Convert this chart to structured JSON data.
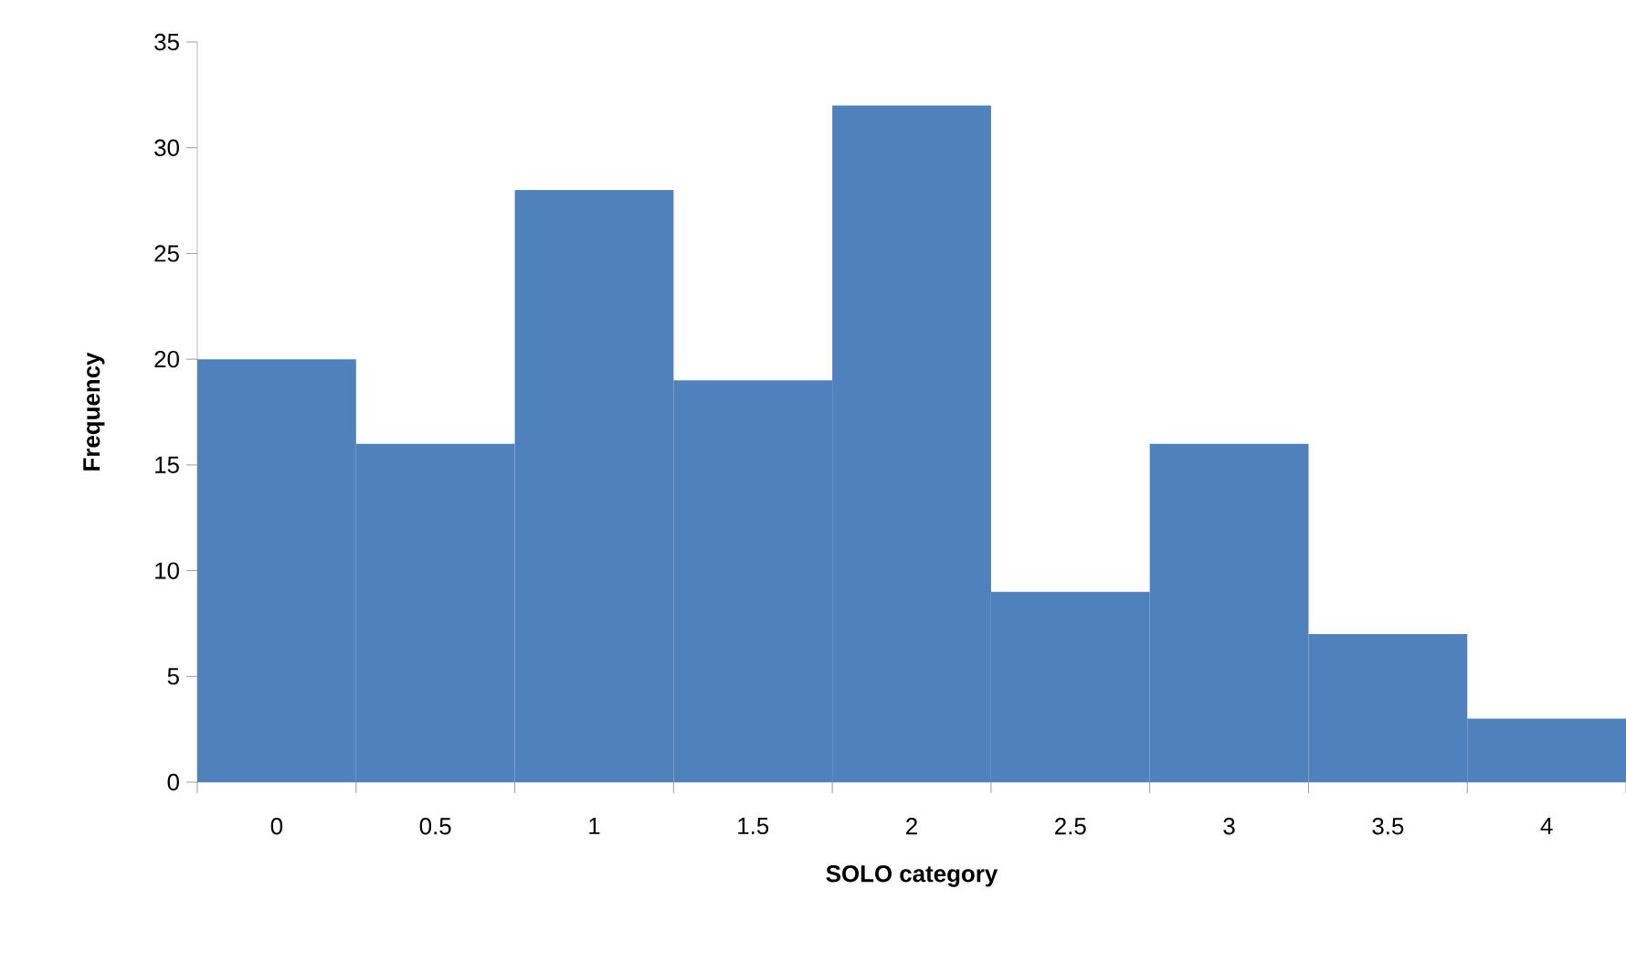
{
  "chart_data": {
    "type": "bar",
    "xlabel": "SOLO category",
    "ylabel": "Frequency",
    "categories": [
      "0",
      "0.5",
      "1",
      "1.5",
      "2",
      "2.5",
      "3",
      "3.5",
      "4"
    ],
    "values": [
      20,
      16,
      28,
      19,
      32,
      9,
      16,
      7,
      3
    ],
    "color": "#4f81bd",
    "ylim": [
      0,
      35
    ],
    "yticks": [
      0,
      5,
      10,
      15,
      20,
      25,
      30,
      35
    ]
  }
}
